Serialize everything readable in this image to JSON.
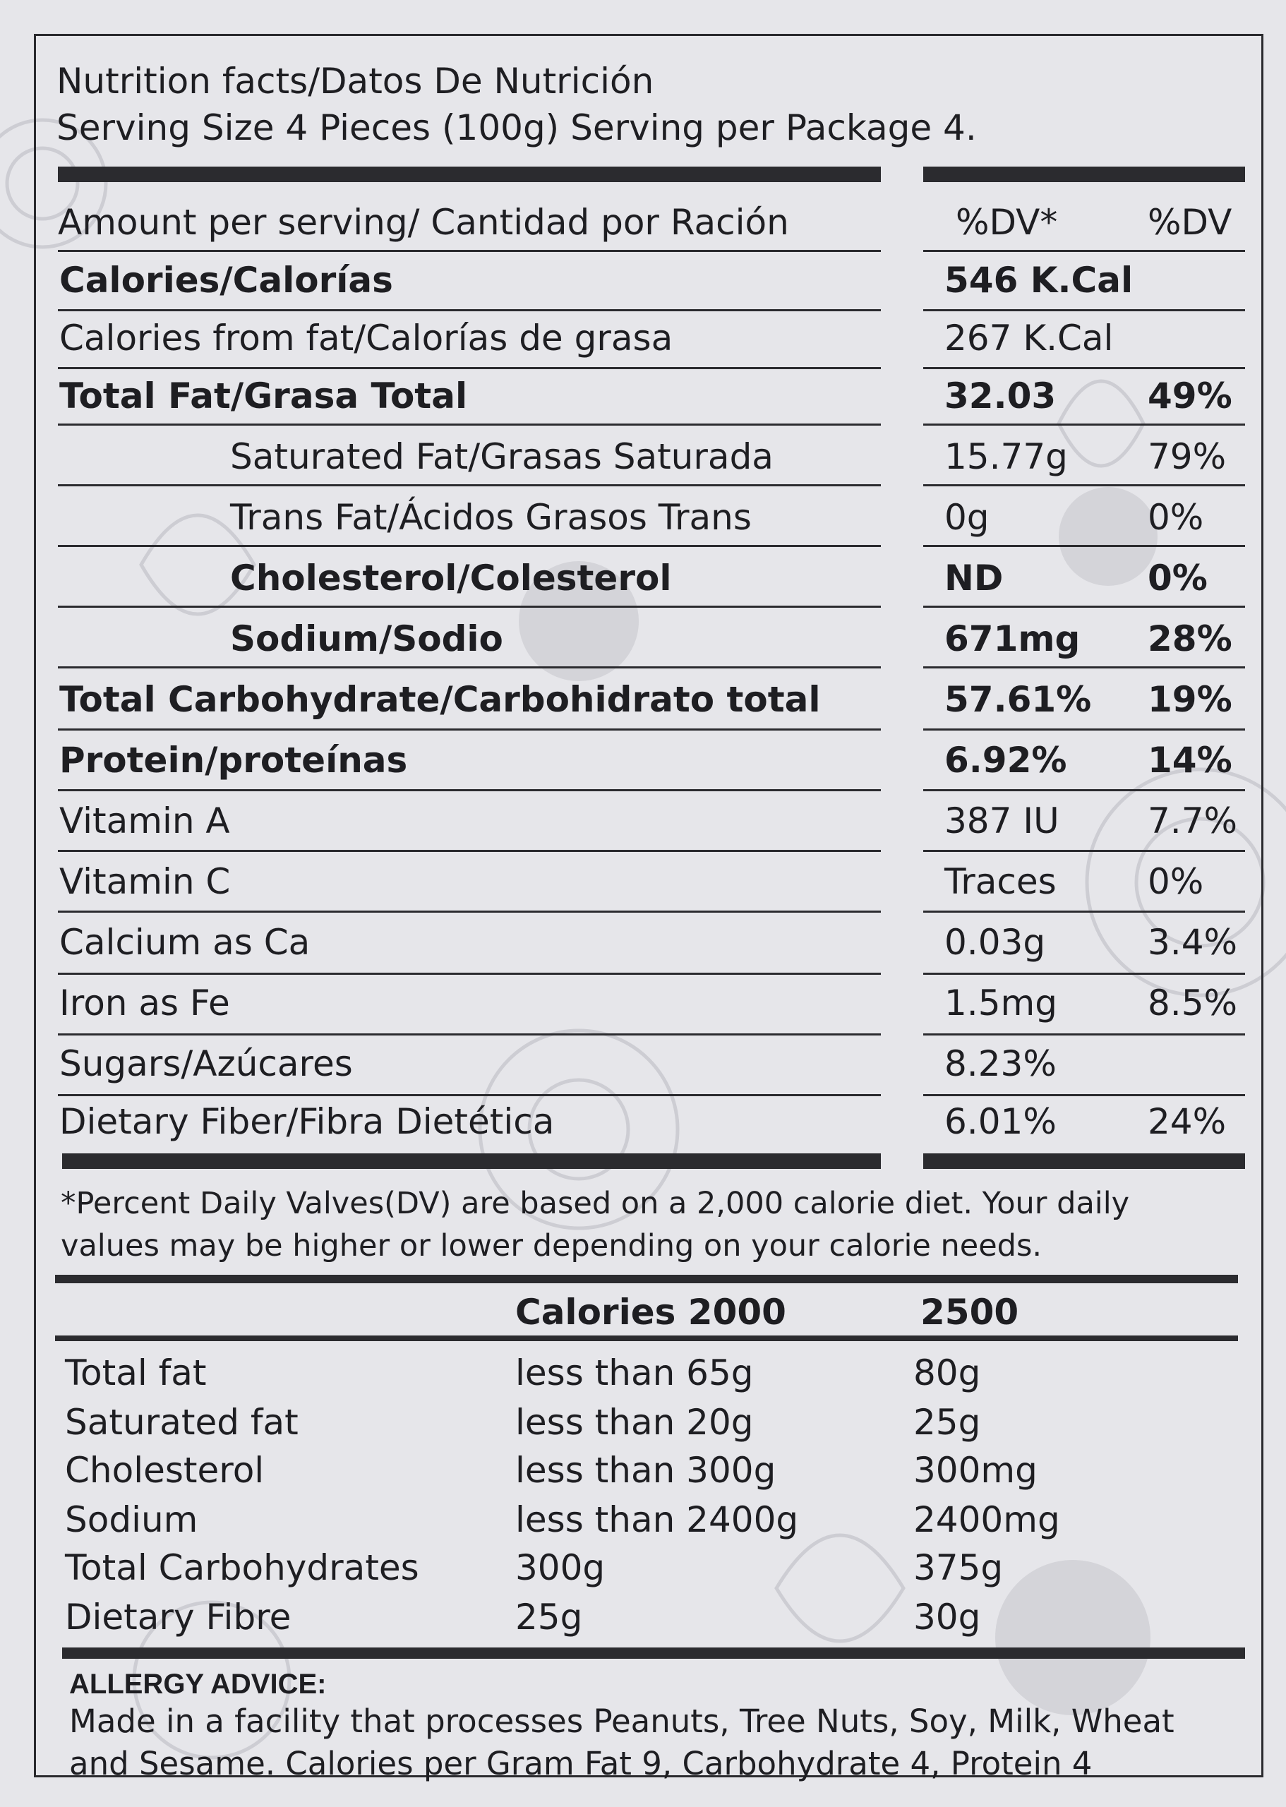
{
  "header": {
    "title": "Nutrition facts/Datos De Nutrición",
    "serving": "Serving Size 4 Pieces (100g) Serving per Package 4."
  },
  "table": {
    "col_header": {
      "label": "Amount per serving/ Cantidad por Ración",
      "dv1": "%DV*",
      "dv2": "%DV"
    },
    "rows": [
      {
        "label": "Calories/Calorías",
        "amount": "546 K.Cal",
        "dv": ""
      },
      {
        "label": "Calories from fat/Calorías de grasa",
        "amount": "267 K.Cal",
        "dv": ""
      },
      {
        "label": "Total Fat/Grasa Total",
        "amount": "32.03",
        "dv": "49%"
      },
      {
        "label": "Saturated Fat/Grasas Saturada",
        "amount": "15.77g",
        "dv": "79%"
      },
      {
        "label": "Trans Fat/Ácidos Grasos Trans",
        "amount": "0g",
        "dv": "0%"
      },
      {
        "label": "Cholesterol/Colesterol",
        "amount": "ND",
        "dv": "0%"
      },
      {
        "label": "Sodium/Sodio",
        "amount": "671mg",
        "dv": "28%"
      },
      {
        "label": "Total Carbohydrate/Carbohidrato total",
        "amount": "57.61%",
        "dv": "19%"
      },
      {
        "label": "Protein/proteínas",
        "amount": "6.92%",
        "dv": "14%"
      },
      {
        "label": "Vitamin A",
        "amount": "387 IU",
        "dv": "7.7%"
      },
      {
        "label": "Vitamin C",
        "amount": "Traces",
        "dv": "0%"
      },
      {
        "label": "Calcium as Ca",
        "amount": "0.03g",
        "dv": "3.4%"
      },
      {
        "label": "Iron as Fe",
        "amount": "1.5mg",
        "dv": "8.5%"
      },
      {
        "label": "Sugars/Azúcares",
        "amount": "8.23%",
        "dv": ""
      },
      {
        "label": "Dietary Fiber/Fibra Dietética",
        "amount": "6.01%",
        "dv": "24%"
      }
    ]
  },
  "footnote": {
    "line1": "*Percent Daily Valves(DV) are based on a 2,000 calorie diet. Your daily",
    "line2": "values may be higher or lower depending on your calorie needs."
  },
  "reference": {
    "col1": "Calories 2000",
    "col2": "2500",
    "rows": [
      {
        "label": "Total fat",
        "c2000": "less than 65g",
        "c2500": "80g"
      },
      {
        "label": "Saturated fat",
        "c2000": "less than 20g",
        "c2500": "25g"
      },
      {
        "label": "Cholesterol",
        "c2000": "less than 300g",
        "c2500": "300mg"
      },
      {
        "label": "Sodium",
        "c2000": "less than 2400g",
        "c2500": "2400mg"
      },
      {
        "label": "Total Carbohydrates",
        "c2000": "300g",
        "c2500": "375g"
      },
      {
        "label": "Dietary Fibre",
        "c2000": "25g",
        "c2500": "30g"
      }
    ]
  },
  "allergy": {
    "title": "ALLERGY ADVICE:",
    "line1": "Made in a facility that processes Peanuts, Tree Nuts, Soy, Milk, Wheat",
    "line2": "and Sesame. Calories per Gram Fat 9, Carbohydrate 4, Protein 4"
  }
}
